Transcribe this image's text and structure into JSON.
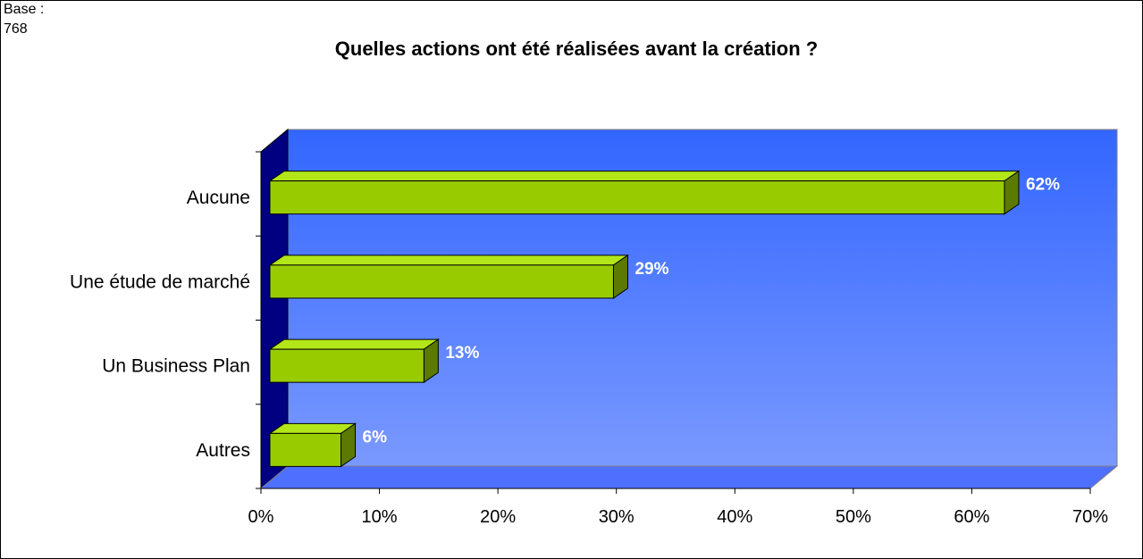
{
  "base_note": {
    "label": "Base :",
    "value": "768"
  },
  "chart_data": {
    "type": "bar",
    "orientation": "horizontal",
    "title": "Quelles actions ont été réalisées avant la création ?",
    "categories": [
      "Aucune",
      "Une étude de marché",
      "Un Business Plan",
      "Autres"
    ],
    "values": [
      62,
      29,
      13,
      6
    ],
    "data_labels": [
      "62%",
      "29%",
      "13%",
      "6%"
    ],
    "xlim": [
      0,
      70
    ],
    "x_ticks": [
      "0%",
      "10%",
      "20%",
      "30%",
      "40%",
      "50%",
      "60%",
      "70%"
    ],
    "xlabel": "",
    "ylabel": "",
    "grid": false,
    "legend": "none",
    "style": "3d",
    "colors": {
      "bar_front": "#99CC00",
      "bar_top": "#B3E619",
      "bar_side": "#5C7A00",
      "plot_bg_top": "#3366FF",
      "plot_bg_bottom": "#7A99FF",
      "left_wall": "#000080",
      "floor": "#4F6FFF"
    }
  }
}
